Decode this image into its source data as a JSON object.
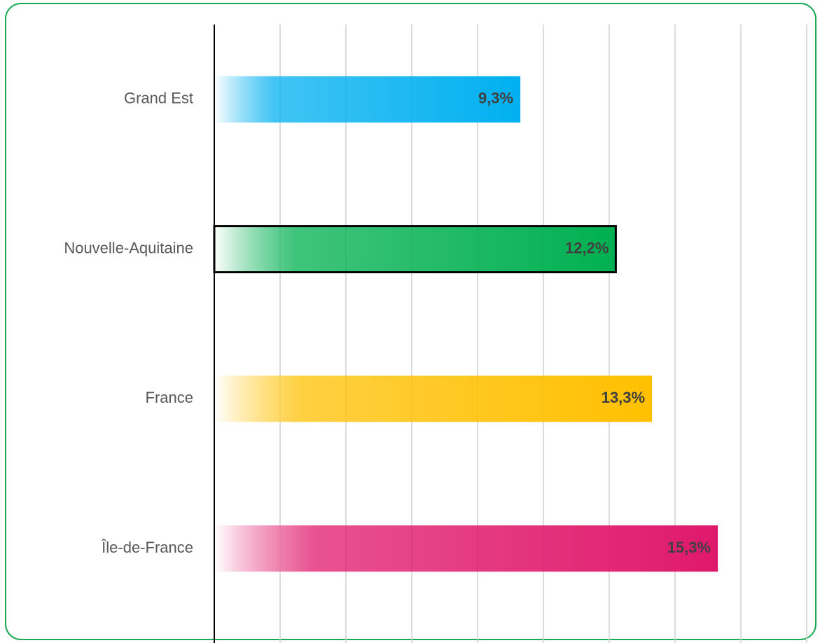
{
  "chart_data": {
    "type": "bar",
    "orientation": "horizontal",
    "categories": [
      "Grand Est",
      "Nouvelle-Aquitaine",
      "France",
      "Île-de-France"
    ],
    "values": [
      9.3,
      12.2,
      13.3,
      15.3
    ],
    "value_labels": [
      "9,3%",
      "12,2%",
      "13,3%",
      "15,3%"
    ],
    "colors": [
      "#00b0f0",
      "#00b050",
      "#ffc000",
      "#e0186c"
    ],
    "highlight": "Nouvelle-Aquitaine",
    "xlim": [
      0,
      18
    ],
    "xticks": [
      0,
      2,
      4,
      6,
      8,
      10,
      12,
      14,
      16,
      18
    ],
    "grid": true
  }
}
